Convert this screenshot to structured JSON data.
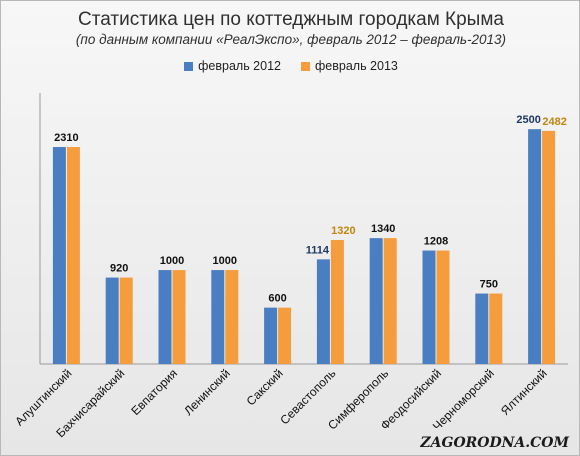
{
  "chart_data": {
    "type": "bar",
    "title": "Статистика цен по коттеджным городкам Крыма",
    "subtitle": "(по данным компании «РеалЭкспо», февраль 2012 – февраль-2013)",
    "categories": [
      "Алуштинский",
      "Бахчисарайский",
      "Евпатория",
      "Ленинский",
      "Сакский",
      "Севастополь",
      "Симферополь",
      "Феодосийский",
      "Черноморский",
      "Ялтинский"
    ],
    "series": [
      {
        "name": "февраль 2012",
        "color": "#4a7ec2",
        "values": [
          2310,
          920,
          1000,
          1000,
          600,
          1114,
          1340,
          1208,
          750,
          2500
        ]
      },
      {
        "name": "февраль 2013",
        "color": "#f59c3c",
        "values": [
          2310,
          920,
          1000,
          1000,
          600,
          1320,
          1340,
          1208,
          750,
          2482
        ]
      }
    ],
    "data_labels": [
      "2310",
      "920",
      "1000",
      "1000",
      "600",
      "1114",
      "1320",
      "1340",
      "1208",
      "750",
      "2500",
      "2482"
    ],
    "ylim": [
      0,
      2800
    ],
    "grid": false,
    "legend_position": "top-center"
  },
  "watermark": "ZAGORODNA.COM"
}
